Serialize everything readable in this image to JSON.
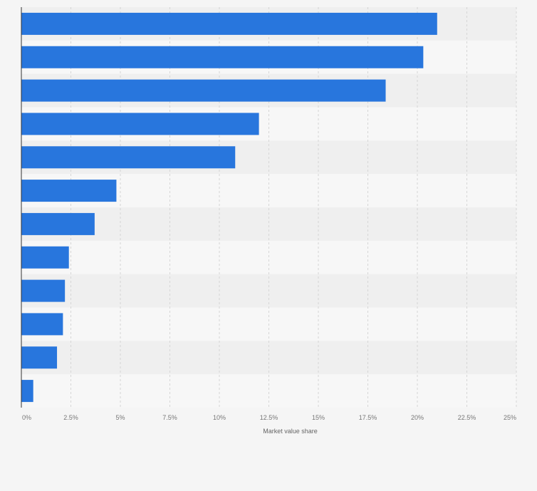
{
  "chart_data": {
    "type": "bar",
    "orientation": "horizontal",
    "categories": [
      "",
      "",
      "",
      "",
      "",
      "",
      "",
      "",
      "",
      "",
      "",
      ""
    ],
    "series": [
      {
        "values": [
          21.0,
          20.3,
          18.4,
          12.0,
          10.8,
          4.8,
          3.7,
          2.4,
          2.2,
          2.1,
          1.8,
          0.6
        ]
      }
    ],
    "xlabel": "Market value share",
    "ylabel": "",
    "xlim": [
      0,
      25
    ],
    "x_ticks": [
      "0%",
      "2.5%",
      "5%",
      "7.5%",
      "10%",
      "12.5%",
      "15%",
      "17.5%",
      "20%",
      "22.5%",
      "25%"
    ],
    "grid": true,
    "colors": {
      "bar": "#2876dd",
      "band_light": "#f7f7f7",
      "band_dark": "#efefef",
      "grid": "#d6d6d6",
      "axis": "#333333",
      "background": "#f5f5f5"
    }
  }
}
